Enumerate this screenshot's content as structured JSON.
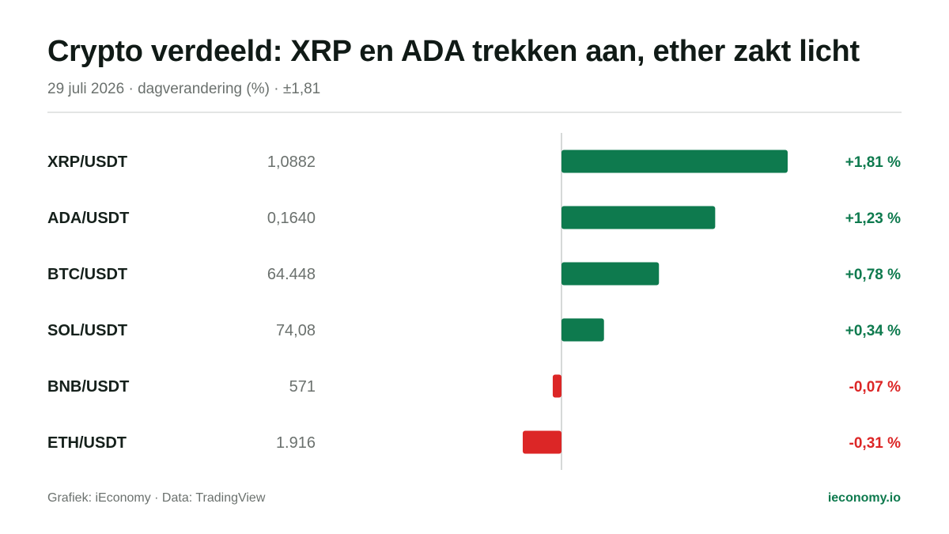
{
  "header": {
    "title": "Crypto verdeeld: XRP en ADA trekken aan, ether zakt licht",
    "subtitle": "29 juli 2026 · dagverandering (%) · ±1,81"
  },
  "footer": {
    "source": "Grafiek: iEconomy · Data: TradingView",
    "brand": "ieconomy.io"
  },
  "colors": {
    "positive": "#0e7a4e",
    "negative": "#dc2626",
    "zero_line": "#d6d9d8",
    "label": "#15201b",
    "price": "#6b716e"
  },
  "chart_data": {
    "type": "bar",
    "orientation": "horizontal",
    "title": "Crypto verdeeld: XRP en ADA trekken aan, ether zakt licht",
    "subtitle": "29 juli 2026 · dagverandering (%) · ±1,81",
    "xlim": [
      -1.81,
      1.81
    ],
    "grid": false,
    "legend": "none",
    "rows": [
      {
        "pair": "XRP/USDT",
        "price": "1,0882",
        "change": 1.81,
        "change_label": "+1,81 %"
      },
      {
        "pair": "ADA/USDT",
        "price": "0,1640",
        "change": 1.23,
        "change_label": "+1,23 %"
      },
      {
        "pair": "BTC/USDT",
        "price": "64.448",
        "change": 0.78,
        "change_label": "+0,78 %"
      },
      {
        "pair": "SOL/USDT",
        "price": "74,08",
        "change": 0.34,
        "change_label": "+0,34 %"
      },
      {
        "pair": "BNB/USDT",
        "price": "571",
        "change": -0.07,
        "change_label": "-0,07 %"
      },
      {
        "pair": "ETH/USDT",
        "price": "1.916",
        "change": -0.31,
        "change_label": "-0,31 %"
      }
    ]
  }
}
